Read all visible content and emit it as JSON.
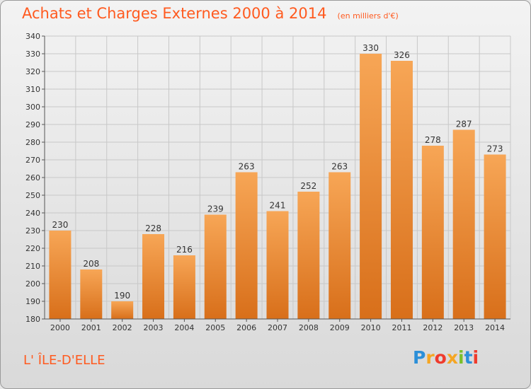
{
  "header": {
    "title": "Achats et Charges Externes 2000 à 2014",
    "subtitle": "(en milliers d'€)"
  },
  "footer": {
    "place": "L' ÎLE-D'ELLE",
    "logo": "Proxiti"
  },
  "colors": {
    "accent": "#ff5a1f",
    "bar_top": "#f7a656",
    "bar_bottom": "#d86f1a",
    "grid": "#c8c8c8",
    "logo": [
      "#2b8fd8",
      "#f5a623",
      "#ef3b2d",
      "#f5a623",
      "#7bbf2a",
      "#2b8fd8",
      "#ef3b2d"
    ]
  },
  "chart_data": {
    "type": "bar",
    "title": "Achats et Charges Externes 2000 à 2014",
    "subtitle": "(en milliers d'€)",
    "categories": [
      "2000",
      "2001",
      "2002",
      "2003",
      "2004",
      "2005",
      "2006",
      "2007",
      "2008",
      "2009",
      "2010",
      "2011",
      "2012",
      "2013",
      "2014"
    ],
    "values": [
      230,
      208,
      190,
      228,
      216,
      239,
      263,
      241,
      252,
      263,
      330,
      326,
      278,
      287,
      273
    ],
    "ylim": [
      180,
      340
    ],
    "yticks": [
      180,
      190,
      200,
      210,
      220,
      230,
      240,
      250,
      260,
      270,
      280,
      290,
      300,
      310,
      320,
      330,
      340
    ],
    "grid": true,
    "data_labels": true
  }
}
